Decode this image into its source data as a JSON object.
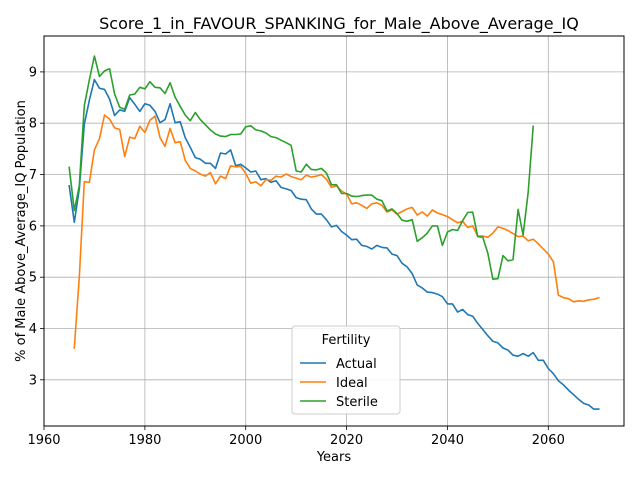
{
  "chart_data": {
    "type": "line",
    "title": "Score_1_in_FAVOUR_SPANKING_for_Male_Above_Average_IQ",
    "xlabel": "Years",
    "ylabel": "% of Male Above_Average_IQ Population",
    "xlim": [
      1960,
      2075
    ],
    "ylim": [
      2.1,
      9.7
    ],
    "xticks": [
      1960,
      1980,
      2000,
      2020,
      2040,
      2060
    ],
    "yticks": [
      3,
      4,
      5,
      6,
      7,
      8,
      9
    ],
    "grid": true,
    "legend": {
      "title": "Fertility",
      "placement": "bottom-center",
      "entries": [
        "Actual",
        "Ideal",
        "Sterile"
      ]
    },
    "series": [
      {
        "name": "Actual",
        "color": "#1f77b4",
        "points": [
          [
            1965,
            6.78
          ],
          [
            1966,
            6.07
          ],
          [
            1967,
            6.72
          ],
          [
            1968,
            7.98
          ],
          [
            1969,
            8.45
          ],
          [
            1970,
            8.85
          ],
          [
            1971,
            8.68
          ],
          [
            1972,
            8.66
          ],
          [
            1973,
            8.47
          ],
          [
            1974,
            8.15
          ],
          [
            1975,
            8.26
          ],
          [
            1976,
            8.23
          ],
          [
            1977,
            8.5
          ],
          [
            1978,
            8.37
          ],
          [
            1979,
            8.23
          ],
          [
            1980,
            8.38
          ],
          [
            1981,
            8.35
          ],
          [
            1982,
            8.23
          ],
          [
            1983,
            8.01
          ],
          [
            1984,
            8.07
          ],
          [
            1985,
            8.38
          ],
          [
            1986,
            8.01
          ],
          [
            1987,
            8.03
          ],
          [
            1988,
            7.72
          ],
          [
            1989,
            7.53
          ],
          [
            1990,
            7.33
          ],
          [
            1991,
            7.3
          ],
          [
            1992,
            7.22
          ],
          [
            1993,
            7.22
          ],
          [
            1994,
            7.12
          ],
          [
            1995,
            7.42
          ],
          [
            1996,
            7.4
          ],
          [
            1997,
            7.48
          ],
          [
            1998,
            7.17
          ],
          [
            1999,
            7.2
          ],
          [
            2000,
            7.13
          ],
          [
            2001,
            7.05
          ],
          [
            2002,
            7.07
          ],
          [
            2003,
            6.9
          ],
          [
            2004,
            6.92
          ],
          [
            2005,
            6.85
          ],
          [
            2006,
            6.88
          ],
          [
            2007,
            6.75
          ],
          [
            2008,
            6.72
          ],
          [
            2009,
            6.69
          ],
          [
            2010,
            6.55
          ],
          [
            2011,
            6.52
          ],
          [
            2012,
            6.51
          ],
          [
            2013,
            6.33
          ],
          [
            2014,
            6.23
          ],
          [
            2015,
            6.23
          ],
          [
            2016,
            6.12
          ],
          [
            2017,
            5.98
          ],
          [
            2018,
            6.01
          ],
          [
            2019,
            5.89
          ],
          [
            2020,
            5.82
          ],
          [
            2021,
            5.73
          ],
          [
            2022,
            5.74
          ],
          [
            2023,
            5.62
          ],
          [
            2024,
            5.6
          ],
          [
            2025,
            5.55
          ],
          [
            2026,
            5.62
          ],
          [
            2027,
            5.58
          ],
          [
            2028,
            5.57
          ],
          [
            2029,
            5.45
          ],
          [
            2030,
            5.42
          ],
          [
            2031,
            5.27
          ],
          [
            2032,
            5.2
          ],
          [
            2033,
            5.07
          ],
          [
            2034,
            4.85
          ],
          [
            2035,
            4.79
          ],
          [
            2036,
            4.71
          ],
          [
            2037,
            4.7
          ],
          [
            2038,
            4.67
          ],
          [
            2039,
            4.62
          ],
          [
            2040,
            4.48
          ],
          [
            2041,
            4.48
          ],
          [
            2042,
            4.32
          ],
          [
            2043,
            4.37
          ],
          [
            2044,
            4.27
          ],
          [
            2045,
            4.24
          ],
          [
            2046,
            4.1
          ],
          [
            2047,
            3.98
          ],
          [
            2048,
            3.86
          ],
          [
            2049,
            3.75
          ],
          [
            2050,
            3.72
          ],
          [
            2051,
            3.62
          ],
          [
            2052,
            3.58
          ],
          [
            2053,
            3.48
          ],
          [
            2054,
            3.46
          ],
          [
            2055,
            3.51
          ],
          [
            2056,
            3.46
          ],
          [
            2057,
            3.53
          ],
          [
            2058,
            3.38
          ],
          [
            2059,
            3.38
          ],
          [
            2060,
            3.22
          ],
          [
            2061,
            3.12
          ],
          [
            2062,
            2.98
          ],
          [
            2063,
            2.9
          ],
          [
            2064,
            2.8
          ],
          [
            2065,
            2.71
          ],
          [
            2066,
            2.62
          ],
          [
            2067,
            2.54
          ],
          [
            2068,
            2.51
          ],
          [
            2069,
            2.43
          ],
          [
            2070,
            2.43
          ]
        ]
      },
      {
        "name": "Ideal",
        "color": "#ff7f0e",
        "points": [
          [
            1966,
            3.62
          ],
          [
            1967,
            5.0
          ],
          [
            1968,
            6.86
          ],
          [
            1969,
            6.85
          ],
          [
            1970,
            7.48
          ],
          [
            1971,
            7.7
          ],
          [
            1972,
            8.16
          ],
          [
            1973,
            8.08
          ],
          [
            1974,
            7.91
          ],
          [
            1975,
            7.88
          ],
          [
            1976,
            7.35
          ],
          [
            1977,
            7.73
          ],
          [
            1978,
            7.7
          ],
          [
            1979,
            7.94
          ],
          [
            1980,
            7.82
          ],
          [
            1981,
            8.06
          ],
          [
            1982,
            8.14
          ],
          [
            1983,
            7.72
          ],
          [
            1984,
            7.55
          ],
          [
            1985,
            7.9
          ],
          [
            1986,
            7.62
          ],
          [
            1987,
            7.64
          ],
          [
            1988,
            7.28
          ],
          [
            1989,
            7.12
          ],
          [
            1990,
            7.07
          ],
          [
            1991,
            7.01
          ],
          [
            1992,
            6.97
          ],
          [
            1993,
            7.04
          ],
          [
            1994,
            6.82
          ],
          [
            1995,
            6.97
          ],
          [
            1996,
            6.92
          ],
          [
            1997,
            7.17
          ],
          [
            1998,
            7.15
          ],
          [
            1999,
            7.16
          ],
          [
            2000,
            7.02
          ],
          [
            2001,
            6.83
          ],
          [
            2002,
            6.86
          ],
          [
            2003,
            6.78
          ],
          [
            2004,
            6.9
          ],
          [
            2005,
            6.89
          ],
          [
            2006,
            6.97
          ],
          [
            2007,
            6.95
          ],
          [
            2008,
            7.01
          ],
          [
            2009,
            6.96
          ],
          [
            2010,
            6.93
          ],
          [
            2011,
            6.9
          ],
          [
            2012,
            6.99
          ],
          [
            2013,
            6.95
          ],
          [
            2014,
            6.97
          ],
          [
            2015,
            7.0
          ],
          [
            2016,
            6.91
          ],
          [
            2017,
            6.75
          ],
          [
            2018,
            6.78
          ],
          [
            2019,
            6.68
          ],
          [
            2020,
            6.62
          ],
          [
            2021,
            6.43
          ],
          [
            2022,
            6.45
          ],
          [
            2023,
            6.4
          ],
          [
            2024,
            6.34
          ],
          [
            2025,
            6.43
          ],
          [
            2026,
            6.45
          ],
          [
            2027,
            6.4
          ],
          [
            2028,
            6.27
          ],
          [
            2029,
            6.31
          ],
          [
            2030,
            6.23
          ],
          [
            2031,
            6.28
          ],
          [
            2032,
            6.33
          ],
          [
            2033,
            6.36
          ],
          [
            2034,
            6.21
          ],
          [
            2035,
            6.27
          ],
          [
            2036,
            6.19
          ],
          [
            2037,
            6.31
          ],
          [
            2038,
            6.25
          ],
          [
            2039,
            6.22
          ],
          [
            2040,
            6.18
          ],
          [
            2041,
            6.12
          ],
          [
            2042,
            6.06
          ],
          [
            2043,
            6.09
          ],
          [
            2044,
            5.97
          ],
          [
            2045,
            6.0
          ],
          [
            2046,
            5.8
          ],
          [
            2047,
            5.8
          ],
          [
            2048,
            5.78
          ],
          [
            2049,
            5.86
          ],
          [
            2050,
            5.98
          ],
          [
            2051,
            5.95
          ],
          [
            2052,
            5.91
          ],
          [
            2053,
            5.85
          ],
          [
            2054,
            5.79
          ],
          [
            2055,
            5.8
          ],
          [
            2056,
            5.71
          ],
          [
            2057,
            5.74
          ],
          [
            2058,
            5.65
          ],
          [
            2059,
            5.55
          ],
          [
            2060,
            5.45
          ],
          [
            2061,
            5.3
          ],
          [
            2062,
            4.65
          ],
          [
            2063,
            4.6
          ],
          [
            2064,
            4.58
          ],
          [
            2065,
            4.52
          ],
          [
            2066,
            4.54
          ],
          [
            2067,
            4.53
          ],
          [
            2068,
            4.56
          ],
          [
            2069,
            4.57
          ],
          [
            2070,
            4.6
          ]
        ]
      },
      {
        "name": "Sterile",
        "color": "#2ca02c",
        "points": [
          [
            1965,
            7.14
          ],
          [
            1966,
            6.3
          ],
          [
            1967,
            6.78
          ],
          [
            1968,
            8.34
          ],
          [
            1969,
            8.85
          ],
          [
            1970,
            9.31
          ],
          [
            1971,
            8.91
          ],
          [
            1972,
            9.02
          ],
          [
            1973,
            9.06
          ],
          [
            1974,
            8.57
          ],
          [
            1975,
            8.31
          ],
          [
            1976,
            8.27
          ],
          [
            1977,
            8.55
          ],
          [
            1978,
            8.57
          ],
          [
            1979,
            8.7
          ],
          [
            1980,
            8.67
          ],
          [
            1981,
            8.81
          ],
          [
            1982,
            8.7
          ],
          [
            1983,
            8.69
          ],
          [
            1984,
            8.58
          ],
          [
            1985,
            8.79
          ],
          [
            1986,
            8.51
          ],
          [
            1987,
            8.33
          ],
          [
            1988,
            8.16
          ],
          [
            1989,
            8.05
          ],
          [
            1990,
            8.21
          ],
          [
            1991,
            8.07
          ],
          [
            1992,
            7.97
          ],
          [
            1993,
            7.87
          ],
          [
            1994,
            7.79
          ],
          [
            1995,
            7.75
          ],
          [
            1996,
            7.74
          ],
          [
            1997,
            7.78
          ],
          [
            1998,
            7.78
          ],
          [
            1999,
            7.79
          ],
          [
            2000,
            7.93
          ],
          [
            2001,
            7.95
          ],
          [
            2002,
            7.87
          ],
          [
            2003,
            7.85
          ],
          [
            2004,
            7.81
          ],
          [
            2005,
            7.74
          ],
          [
            2006,
            7.72
          ],
          [
            2007,
            7.67
          ],
          [
            2008,
            7.62
          ],
          [
            2009,
            7.57
          ],
          [
            2010,
            7.07
          ],
          [
            2011,
            7.05
          ],
          [
            2012,
            7.2
          ],
          [
            2013,
            7.1
          ],
          [
            2014,
            7.09
          ],
          [
            2015,
            7.12
          ],
          [
            2016,
            7.03
          ],
          [
            2017,
            6.8
          ],
          [
            2018,
            6.8
          ],
          [
            2019,
            6.63
          ],
          [
            2020,
            6.63
          ],
          [
            2021,
            6.58
          ],
          [
            2022,
            6.57
          ],
          [
            2023,
            6.59
          ],
          [
            2024,
            6.6
          ],
          [
            2025,
            6.6
          ],
          [
            2026,
            6.52
          ],
          [
            2027,
            6.49
          ],
          [
            2028,
            6.29
          ],
          [
            2029,
            6.33
          ],
          [
            2030,
            6.24
          ],
          [
            2031,
            6.11
          ],
          [
            2032,
            6.09
          ],
          [
            2033,
            6.12
          ],
          [
            2034,
            5.7
          ],
          [
            2035,
            5.77
          ],
          [
            2036,
            5.86
          ],
          [
            2037,
            6.0
          ],
          [
            2038,
            6.0
          ],
          [
            2039,
            5.62
          ],
          [
            2040,
            5.88
          ],
          [
            2041,
            5.93
          ],
          [
            2042,
            5.91
          ],
          [
            2043,
            6.1
          ],
          [
            2044,
            6.26
          ],
          [
            2045,
            6.27
          ],
          [
            2046,
            5.79
          ],
          [
            2047,
            5.78
          ],
          [
            2048,
            5.47
          ],
          [
            2049,
            4.96
          ],
          [
            2050,
            4.97
          ],
          [
            2051,
            5.42
          ],
          [
            2052,
            5.32
          ],
          [
            2053,
            5.34
          ],
          [
            2054,
            6.32
          ],
          [
            2055,
            5.82
          ],
          [
            2056,
            6.66
          ],
          [
            2057,
            7.94
          ]
        ]
      }
    ]
  }
}
